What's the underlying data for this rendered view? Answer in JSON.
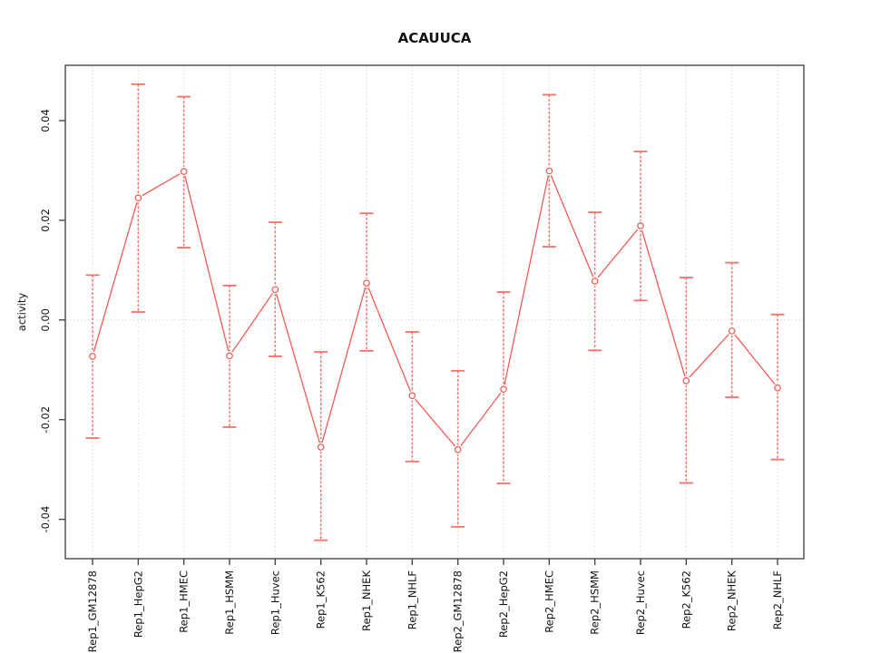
{
  "chart_data": {
    "type": "line",
    "title": "ACAUUCA",
    "ylabel": "activity",
    "xlabel": "",
    "categories": [
      "Rep1_GM12878",
      "Rep1_HepG2",
      "Rep1_HMEC",
      "Rep1_HSMM",
      "Rep1_Huvec",
      "Rep1_K562",
      "Rep1_NHEK",
      "Rep1_NHLF",
      "Rep2_GM12878",
      "Rep2_HepG2",
      "Rep2_HMEC",
      "Rep2_HSMM",
      "Rep2_Huvec",
      "Rep2_K562",
      "Rep2_NHEK",
      "Rep2_NHLF"
    ],
    "series": [
      {
        "name": "activity",
        "values": [
          -0.0073,
          0.0245,
          0.0298,
          -0.0072,
          0.0061,
          -0.0255,
          0.0074,
          -0.0152,
          -0.026,
          -0.0139,
          0.0299,
          0.0078,
          0.0189,
          -0.0122,
          -0.0022,
          -0.0136
        ],
        "upper": [
          0.009,
          0.0473,
          0.0448,
          0.0069,
          0.0196,
          -0.0064,
          0.0214,
          -0.0024,
          -0.0102,
          0.0056,
          0.0452,
          0.0216,
          0.0338,
          0.0085,
          0.0115,
          0.0011
        ],
        "lower": [
          -0.0237,
          0.0016,
          0.0145,
          -0.0215,
          -0.0073,
          -0.0442,
          -0.0062,
          -0.0284,
          -0.0415,
          -0.0328,
          0.0147,
          -0.0061,
          0.0039,
          -0.0327,
          -0.0155,
          -0.028
        ]
      }
    ],
    "error_bars": true,
    "marker": "open-circle",
    "y_ticks": {
      "values": [
        0.04,
        0.02,
        0.0,
        -0.02,
        -0.04
      ],
      "labels": [
        "0.04",
        "0.02",
        "0.00",
        "-0.02",
        "-0.04"
      ]
    },
    "ylim": [
      -0.0479,
      0.0511
    ],
    "grid": {
      "vertical_per_category": true,
      "zero_line_dotted": true
    },
    "legend": "none",
    "colors": {
      "series": "#f8544e",
      "error_bar": "#f8706a",
      "marker_fill": "#ffffff",
      "grid": "#d9d9d9",
      "zero_line": "#d9d9d9",
      "axis": "#474747",
      "text": "#111111",
      "background": "#ffffff"
    }
  }
}
